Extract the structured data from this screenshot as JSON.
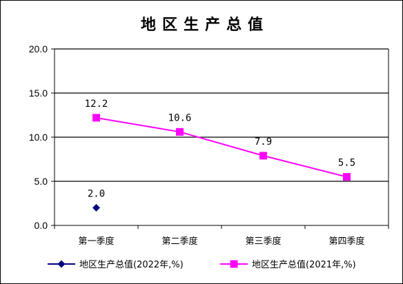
{
  "chart_data": {
    "type": "line",
    "title": "地区生产总值",
    "categories": [
      "第一季度",
      "第二季度",
      "第三季度",
      "第四季度"
    ],
    "ylim": [
      0,
      20
    ],
    "y_ticks": [
      "0.0",
      "5.0",
      "10.0",
      "15.0",
      "20.0"
    ],
    "grid": true,
    "legend_position": "bottom",
    "series": [
      {
        "name": "地区生产总值(2022年,%)",
        "values": [
          2.0,
          null,
          null,
          null
        ],
        "labels": [
          "2.0",
          "",
          "",
          ""
        ],
        "color": "#000080",
        "marker": "diamond"
      },
      {
        "name": "地区生产总值(2021年,%)",
        "values": [
          12.2,
          10.6,
          7.9,
          5.5
        ],
        "labels": [
          "12.2",
          "10.6",
          "7.9",
          "5.5"
        ],
        "color": "#FF00FF",
        "marker": "square"
      }
    ]
  }
}
